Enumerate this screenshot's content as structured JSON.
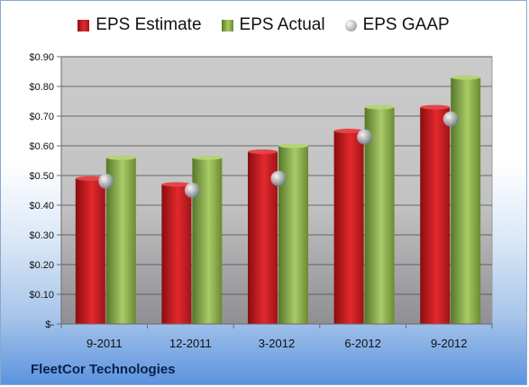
{
  "company": "FleetCor Technologies",
  "legend": {
    "estimate": "EPS Estimate",
    "actual": "EPS Actual",
    "gaap": "EPS GAAP"
  },
  "colors": {
    "estimate": "#d21f23",
    "actual": "#8db04c",
    "gaap": "#b8bec6",
    "plot_background": "#c8c8c8"
  },
  "chart_data": {
    "type": "bar",
    "categories": [
      "9-2011",
      "12-2011",
      "3-2012",
      "6-2012",
      "9-2012"
    ],
    "series": [
      {
        "name": "EPS Estimate",
        "type": "bar",
        "values": [
          0.49,
          0.47,
          0.58,
          0.65,
          0.73
        ]
      },
      {
        "name": "EPS Actual",
        "type": "bar",
        "values": [
          0.56,
          0.56,
          0.6,
          0.73,
          0.83
        ]
      },
      {
        "name": "EPS GAAP",
        "type": "marker",
        "values": [
          0.48,
          0.45,
          0.49,
          0.63,
          0.69
        ]
      }
    ],
    "ylim": [
      0,
      0.9
    ],
    "yticks": [
      0,
      0.1,
      0.2,
      0.3,
      0.4,
      0.5,
      0.6,
      0.7,
      0.8,
      0.9
    ],
    "ytick_labels": [
      "$-",
      "$0.10",
      "$0.20",
      "$0.30",
      "$0.40",
      "$0.50",
      "$0.60",
      "$0.70",
      "$0.80",
      "$0.90"
    ],
    "grid": true,
    "legend_position": "top"
  }
}
